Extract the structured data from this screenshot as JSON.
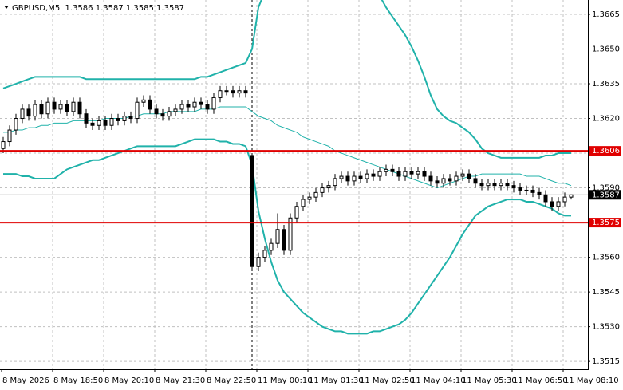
{
  "chart_data": {
    "type": "candlestick",
    "title": "GBPUSD,M5  1.3586 1.3587 1.3585 1.3587",
    "categories": [
      "8 May 2026",
      null,
      null,
      null,
      null,
      null,
      null,
      null,
      "8 May 18:50",
      null,
      null,
      null,
      null,
      null,
      null,
      null,
      "8 May 20:10",
      null,
      null,
      null,
      null,
      null,
      null,
      null,
      "8 May 21:30",
      null,
      null,
      null,
      null,
      null,
      null,
      null,
      "8 May 22:50",
      null,
      null,
      null,
      null,
      null,
      null,
      null,
      "11 May 00:10",
      null,
      null,
      null,
      null,
      null,
      null,
      null,
      "11 May 01:30",
      null,
      null,
      null,
      null,
      null,
      null,
      null,
      "11 May 02:50",
      null,
      null,
      null,
      null,
      null,
      null,
      null,
      "11 May 04:10",
      null,
      null,
      null,
      null,
      null,
      null,
      null,
      "11 May 05:30",
      null,
      null,
      null,
      null,
      null,
      null,
      null,
      "11 May 06:50",
      null,
      null,
      null,
      null,
      null,
      null,
      null,
      "11 May 08:10",
      null
    ],
    "candles": [
      [
        1.3607,
        1.3612,
        1.3605,
        1.361
      ],
      [
        1.361,
        1.3617,
        1.3608,
        1.3615
      ],
      [
        1.3615,
        1.3622,
        1.3613,
        1.362
      ],
      [
        1.362,
        1.3626,
        1.3618,
        1.3624
      ],
      [
        1.3624,
        1.3626,
        1.3619,
        1.3621
      ],
      [
        1.3621,
        1.3628,
        1.3619,
        1.3626
      ],
      [
        1.3626,
        1.3628,
        1.362,
        1.3622
      ],
      [
        1.3622,
        1.3629,
        1.362,
        1.3627
      ],
      [
        1.3627,
        1.3629,
        1.3622,
        1.3624
      ],
      [
        1.3624,
        1.3628,
        1.3622,
        1.3626
      ],
      [
        1.3626,
        1.3628,
        1.3621,
        1.3623
      ],
      [
        1.3623,
        1.3629,
        1.3621,
        1.3627
      ],
      [
        1.3627,
        1.3629,
        1.362,
        1.3622
      ],
      [
        1.3622,
        1.3624,
        1.3616,
        1.3618
      ],
      [
        1.3618,
        1.362,
        1.3615,
        1.3617
      ],
      [
        1.3617,
        1.3621,
        1.3615,
        1.3619
      ],
      [
        1.3619,
        1.3621,
        1.3615,
        1.3617
      ],
      [
        1.3617,
        1.3622,
        1.3615,
        1.362
      ],
      [
        1.362,
        1.3622,
        1.3617,
        1.3619
      ],
      [
        1.3619,
        1.3623,
        1.3617,
        1.3621
      ],
      [
        1.3621,
        1.3623,
        1.3618,
        1.362
      ],
      [
        1.362,
        1.3629,
        1.3618,
        1.3627
      ],
      [
        1.3627,
        1.363,
        1.3625,
        1.3628
      ],
      [
        1.3628,
        1.363,
        1.3622,
        1.3624
      ],
      [
        1.3624,
        1.3626,
        1.362,
        1.3622
      ],
      [
        1.3622,
        1.3624,
        1.3619,
        1.3621
      ],
      [
        1.3621,
        1.3625,
        1.3619,
        1.3623
      ],
      [
        1.3623,
        1.3626,
        1.3621,
        1.3624
      ],
      [
        1.3624,
        1.3628,
        1.3622,
        1.3626
      ],
      [
        1.3626,
        1.3628,
        1.3623,
        1.3625
      ],
      [
        1.3625,
        1.3629,
        1.3623,
        1.3627
      ],
      [
        1.3627,
        1.3629,
        1.3624,
        1.3626
      ],
      [
        1.3626,
        1.3628,
        1.3622,
        1.3624
      ],
      [
        1.3624,
        1.3631,
        1.3622,
        1.3629
      ],
      [
        1.3629,
        1.3634,
        1.3627,
        1.3632
      ],
      [
        1.3632,
        1.3634,
        1.363,
        1.3632
      ],
      [
        1.3632,
        1.3634,
        1.3629,
        1.3631
      ],
      [
        1.3631,
        1.3634,
        1.3629,
        1.3632
      ],
      [
        1.3632,
        1.3634,
        1.3629,
        1.3631
      ],
      [
        1.3604,
        1.3605,
        1.3554,
        1.3556
      ],
      [
        1.3556,
        1.3562,
        1.3554,
        1.356
      ],
      [
        1.356,
        1.3565,
        1.3558,
        1.3563
      ],
      [
        1.3563,
        1.3568,
        1.3561,
        1.3566
      ],
      [
        1.3566,
        1.3579,
        1.3564,
        1.3572
      ],
      [
        1.3572,
        1.3574,
        1.3561,
        1.3563
      ],
      [
        1.3563,
        1.3579,
        1.3561,
        1.3577
      ],
      [
        1.3577,
        1.3584,
        1.3575,
        1.3582
      ],
      [
        1.3582,
        1.3587,
        1.358,
        1.3585
      ],
      [
        1.3585,
        1.3588,
        1.3583,
        1.3586
      ],
      [
        1.3586,
        1.359,
        1.3584,
        1.3588
      ],
      [
        1.3588,
        1.3592,
        1.3586,
        1.359
      ],
      [
        1.359,
        1.3593,
        1.3588,
        1.3591
      ],
      [
        1.3591,
        1.3596,
        1.3589,
        1.3594
      ],
      [
        1.3594,
        1.3597,
        1.3592,
        1.3595
      ],
      [
        1.3595,
        1.3597,
        1.3591,
        1.3593
      ],
      [
        1.3593,
        1.3597,
        1.3591,
        1.3595
      ],
      [
        1.3595,
        1.3597,
        1.3592,
        1.3594
      ],
      [
        1.3594,
        1.3598,
        1.3592,
        1.3596
      ],
      [
        1.3596,
        1.3598,
        1.3593,
        1.3595
      ],
      [
        1.3595,
        1.3599,
        1.3593,
        1.3597
      ],
      [
        1.3597,
        1.36,
        1.3595,
        1.3598
      ],
      [
        1.3598,
        1.36,
        1.3595,
        1.3597
      ],
      [
        1.3597,
        1.3599,
        1.3593,
        1.3595
      ],
      [
        1.3595,
        1.3599,
        1.3593,
        1.3597
      ],
      [
        1.3597,
        1.3599,
        1.3594,
        1.3596
      ],
      [
        1.3596,
        1.3599,
        1.3594,
        1.3597
      ],
      [
        1.3597,
        1.3599,
        1.3593,
        1.3595
      ],
      [
        1.3595,
        1.3597,
        1.3591,
        1.3593
      ],
      [
        1.3593,
        1.3595,
        1.359,
        1.3592
      ],
      [
        1.3592,
        1.3596,
        1.359,
        1.3594
      ],
      [
        1.3594,
        1.3596,
        1.3591,
        1.3593
      ],
      [
        1.3593,
        1.3597,
        1.3591,
        1.3595
      ],
      [
        1.3595,
        1.3598,
        1.3593,
        1.3596
      ],
      [
        1.3596,
        1.3598,
        1.3592,
        1.3594
      ],
      [
        1.3594,
        1.3596,
        1.359,
        1.3592
      ],
      [
        1.3592,
        1.3594,
        1.3589,
        1.3591
      ],
      [
        1.3591,
        1.3594,
        1.3589,
        1.3592
      ],
      [
        1.3592,
        1.3594,
        1.3589,
        1.3591
      ],
      [
        1.3591,
        1.3594,
        1.3589,
        1.3592
      ],
      [
        1.3592,
        1.3594,
        1.3589,
        1.3591
      ],
      [
        1.3591,
        1.3593,
        1.3588,
        1.359
      ],
      [
        1.359,
        1.3592,
        1.3587,
        1.3589
      ],
      [
        1.3589,
        1.3591,
        1.3587,
        1.3589
      ],
      [
        1.3589,
        1.3591,
        1.3586,
        1.3588
      ],
      [
        1.3588,
        1.359,
        1.3585,
        1.3587
      ],
      [
        1.3587,
        1.3589,
        1.3582,
        1.3584
      ],
      [
        1.3584,
        1.3586,
        1.358,
        1.3582
      ],
      [
        1.3582,
        1.3586,
        1.358,
        1.3584
      ],
      [
        1.3584,
        1.3588,
        1.3582,
        1.3586
      ],
      [
        1.3586,
        1.3587,
        1.3585,
        1.3587
      ]
    ],
    "bands": [
      {
        "color": "#20b2aa",
        "width": 2,
        "values": [
          1.3633,
          1.3634,
          1.3635,
          1.3636,
          1.3637,
          1.3638,
          1.3638,
          1.3638,
          1.3638,
          1.3638,
          1.3638,
          1.3638,
          1.3638,
          1.3637,
          1.3637,
          1.3637,
          1.3637,
          1.3637,
          1.3637,
          1.3637,
          1.3637,
          1.3637,
          1.3637,
          1.3637,
          1.3637,
          1.3637,
          1.3637,
          1.3637,
          1.3637,
          1.3637,
          1.3637,
          1.3638,
          1.3638,
          1.3639,
          1.364,
          1.3641,
          1.3642,
          1.3643,
          1.3644,
          1.365,
          1.3668,
          1.3675,
          1.368,
          1.3683,
          1.3685,
          1.3687,
          1.3688,
          1.3689,
          1.3689,
          1.3689,
          1.3689,
          1.3688,
          1.3688,
          1.3687,
          1.3686,
          1.3685,
          1.3683,
          1.368,
          1.3677,
          1.3673,
          1.3668,
          1.3664,
          1.366,
          1.3656,
          1.3651,
          1.3645,
          1.3638,
          1.363,
          1.3624,
          1.3621,
          1.3619,
          1.3618,
          1.3616,
          1.3614,
          1.3611,
          1.3607,
          1.3605,
          1.3604,
          1.3603,
          1.3603,
          1.3603,
          1.3603,
          1.3603,
          1.3603,
          1.3603,
          1.3604,
          1.3604,
          1.3605,
          1.3605,
          1.3605
        ]
      },
      {
        "color": "#20b2aa",
        "width": 1,
        "values": [
          1.3614,
          1.3614,
          1.3615,
          1.3615,
          1.3616,
          1.3616,
          1.3617,
          1.3617,
          1.3618,
          1.3618,
          1.3618,
          1.3619,
          1.3619,
          1.3619,
          1.3619,
          1.3619,
          1.362,
          1.362,
          1.362,
          1.362,
          1.3621,
          1.3621,
          1.3622,
          1.3622,
          1.3622,
          1.3622,
          1.3623,
          1.3623,
          1.3623,
          1.3623,
          1.3623,
          1.3624,
          1.3624,
          1.3624,
          1.3625,
          1.3625,
          1.3625,
          1.3625,
          1.3625,
          1.3623,
          1.3621,
          1.362,
          1.3619,
          1.3617,
          1.3616,
          1.3615,
          1.3614,
          1.3612,
          1.3611,
          1.361,
          1.3609,
          1.3608,
          1.3606,
          1.3605,
          1.3604,
          1.3603,
          1.3602,
          1.3601,
          1.36,
          1.3599,
          1.3598,
          1.3597,
          1.3596,
          1.3595,
          1.3594,
          1.3593,
          1.3592,
          1.3591,
          1.359,
          1.3591,
          1.3592,
          1.3593,
          1.3594,
          1.3595,
          1.3595,
          1.3596,
          1.3596,
          1.3596,
          1.3596,
          1.3596,
          1.3596,
          1.3596,
          1.3595,
          1.3595,
          1.3595,
          1.3594,
          1.3593,
          1.3592,
          1.3592,
          1.3591
        ]
      },
      {
        "color": "#20b2aa",
        "width": 2,
        "values": [
          1.3596,
          1.3596,
          1.3596,
          1.3595,
          1.3595,
          1.3594,
          1.3594,
          1.3594,
          1.3594,
          1.3596,
          1.3598,
          1.3599,
          1.36,
          1.3601,
          1.3602,
          1.3602,
          1.3603,
          1.3604,
          1.3605,
          1.3606,
          1.3607,
          1.3608,
          1.3608,
          1.3608,
          1.3608,
          1.3608,
          1.3608,
          1.3608,
          1.3609,
          1.361,
          1.3611,
          1.3611,
          1.3611,
          1.3611,
          1.361,
          1.361,
          1.3609,
          1.3609,
          1.3608,
          1.36,
          1.358,
          1.3568,
          1.3558,
          1.355,
          1.3545,
          1.3542,
          1.3539,
          1.3536,
          1.3534,
          1.3532,
          1.353,
          1.3529,
          1.3528,
          1.3528,
          1.3527,
          1.3527,
          1.3527,
          1.3527,
          1.3528,
          1.3528,
          1.3529,
          1.353,
          1.3531,
          1.3533,
          1.3536,
          1.354,
          1.3544,
          1.3548,
          1.3552,
          1.3556,
          1.356,
          1.3565,
          1.357,
          1.3574,
          1.3578,
          1.358,
          1.3582,
          1.3583,
          1.3584,
          1.3585,
          1.3585,
          1.3585,
          1.3584,
          1.3584,
          1.3583,
          1.3582,
          1.3581,
          1.3579,
          1.3578,
          1.3578
        ]
      }
    ],
    "levels": [
      {
        "value": 1.3606,
        "color": "#e00000"
      },
      {
        "value": 1.3575,
        "color": "#e00000"
      }
    ],
    "current_price": 1.3587,
    "ylim": [
      1.35116,
      1.36712
    ],
    "yticks": [
      1.3665,
      {
        "value": 1.365,
        "label": "1.3650"
      },
      1.3635,
      {
        "value": 1.362,
        "label": "1.3620"
      },
      1.3605,
      {
        "value": 1.359,
        "label": "1.3590"
      },
      1.3575,
      {
        "value": 1.356,
        "label": "1.3560"
      },
      1.3545,
      {
        "value": 1.353,
        "label": "1.3530"
      },
      1.3515
    ],
    "grid": true
  }
}
